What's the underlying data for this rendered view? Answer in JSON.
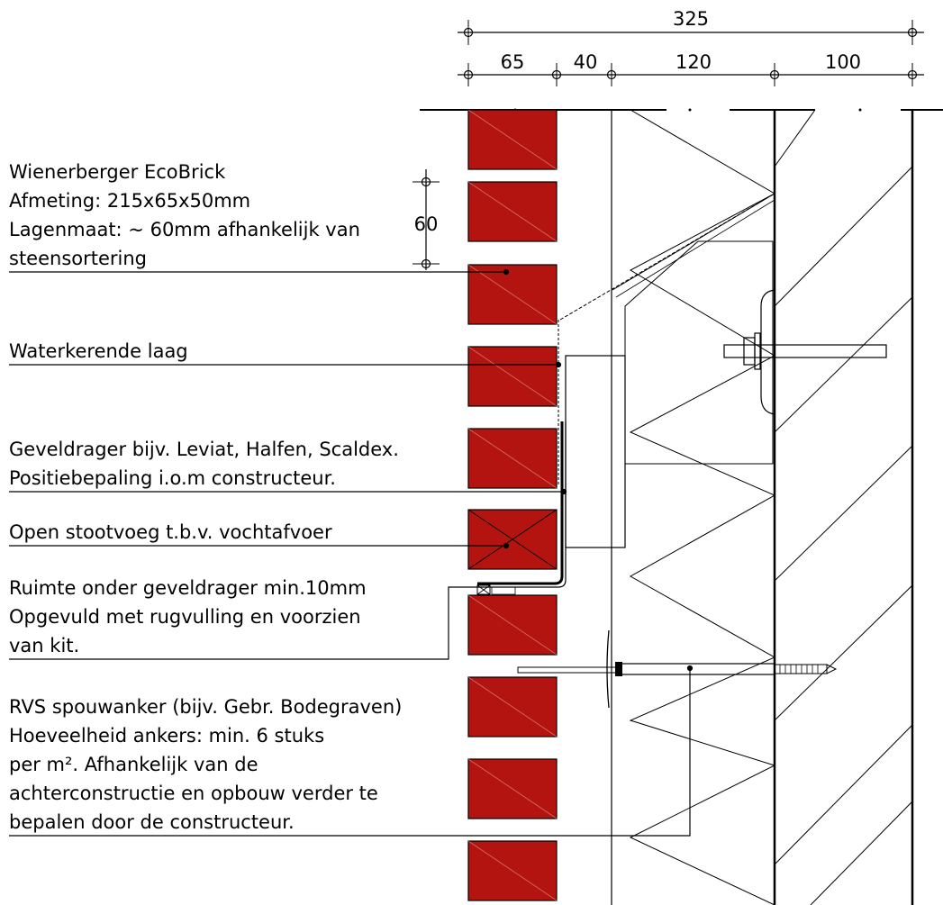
{
  "dimensions": {
    "total": "325",
    "brick": "65",
    "cavity": "40",
    "insulation": "120",
    "wall": "100",
    "course": "60"
  },
  "labels": {
    "brick": [
      "Wienerberger EcoBrick",
      "Afmeting: 215x65x50mm",
      "Lagenmaat: ~ 60mm afhankelijk van",
      "steensortering"
    ],
    "water": [
      "Waterkerende laag"
    ],
    "carrier": [
      "Geveldrager bijv. Leviat, Halfen, Scaldex.",
      "Positiebepaling i.o.m constructeur."
    ],
    "joint": [
      "Open stootvoeg t.b.v. vochtafvoer"
    ],
    "space": [
      "Ruimte onder geveldrager min.10mm",
      "Opgevuld met rugvulling en voorzien",
      "van kit."
    ],
    "anchor": [
      "RVS spouwanker (bijv. Gebr. Bodegraven)",
      "Hoeveelheid ankers: min. 6 stuks",
      "per m². Afhankelijk van de",
      "achterconstructie en opbouw verder te",
      "bepalen door de constructeur."
    ]
  },
  "colors": {
    "brick": "#b3140f",
    "line": "#000000"
  }
}
